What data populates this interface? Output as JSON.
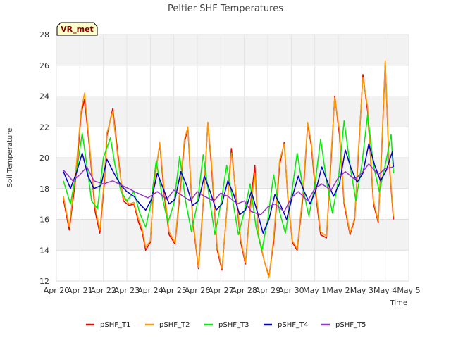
{
  "chart_data": {
    "type": "line",
    "title": "Peltier SHF Temperatures",
    "xlabel": "Time",
    "ylabel": "Soil Temperature",
    "badge": "VR_met",
    "ylim": [
      12,
      28
    ],
    "yticks": [
      12,
      14,
      16,
      18,
      20,
      22,
      24,
      26,
      28
    ],
    "xlim": [
      0,
      15
    ],
    "xticks": [
      {
        "pos": 0,
        "label": "Apr 20"
      },
      {
        "pos": 1,
        "label": "Apr 21"
      },
      {
        "pos": 2,
        "label": "Apr 22"
      },
      {
        "pos": 3,
        "label": "Apr 23"
      },
      {
        "pos": 4,
        "label": "Apr 24"
      },
      {
        "pos": 5,
        "label": "Apr 25"
      },
      {
        "pos": 6,
        "label": "Apr 26"
      },
      {
        "pos": 7,
        "label": "Apr 27"
      },
      {
        "pos": 8,
        "label": "Apr 28"
      },
      {
        "pos": 9,
        "label": "Apr 29"
      },
      {
        "pos": 10,
        "label": "Apr 30"
      },
      {
        "pos": 11,
        "label": "May 1"
      },
      {
        "pos": 12,
        "label": "May 2"
      },
      {
        "pos": 13,
        "label": "May 3"
      },
      {
        "pos": 14,
        "label": "May 4"
      },
      {
        "pos": 15,
        "label": "May 5"
      }
    ],
    "grid": true,
    "legend_position": "bottom",
    "series": [
      {
        "name": "pSHF_T1",
        "color": "#ee0000",
        "x": [
          0.3,
          0.55,
          0.85,
          1.05,
          1.2,
          1.4,
          1.65,
          1.85,
          2.05,
          2.15,
          2.4,
          2.6,
          2.85,
          3.1,
          3.3,
          3.5,
          3.65,
          3.8,
          4.0,
          4.15,
          4.4,
          4.6,
          4.8,
          5.05,
          5.25,
          5.45,
          5.6,
          5.8,
          6.05,
          6.25,
          6.45,
          6.6,
          6.85,
          7.05,
          7.25,
          7.45,
          7.65,
          7.85,
          8.05,
          8.25,
          8.45,
          8.6,
          8.85,
          9.05,
          9.25,
          9.5,
          9.7,
          9.85,
          10.05,
          10.25,
          10.5,
          10.7,
          10.85,
          11.05,
          11.25,
          11.5,
          11.7,
          11.85,
          12.05,
          12.25,
          12.5,
          12.7,
          12.85,
          13.05,
          13.25,
          13.5,
          13.7,
          13.85,
          14.0,
          14.15,
          14.35
        ],
        "y": [
          17.3,
          15.3,
          19.0,
          22.8,
          23.8,
          20.8,
          16.5,
          15.1,
          18.5,
          21.4,
          23.2,
          20.5,
          17.2,
          16.9,
          17.0,
          15.8,
          15.2,
          14.0,
          14.5,
          18.2,
          20.9,
          17.5,
          15.0,
          14.4,
          17.5,
          21.0,
          21.9,
          16.0,
          12.8,
          17.0,
          22.3,
          19.5,
          14.0,
          12.7,
          16.5,
          20.6,
          17.5,
          14.5,
          13.1,
          16.8,
          19.5,
          14.9,
          13.3,
          12.3,
          14.5,
          19.5,
          21.0,
          17.5,
          14.5,
          14.0,
          17.5,
          22.2,
          20.8,
          17.5,
          15.0,
          14.8,
          20.0,
          24.0,
          21.5,
          17.0,
          15.0,
          16.0,
          20.0,
          25.4,
          23.0,
          17.0,
          15.8,
          20.5,
          26.2,
          20.0,
          16.0
        ]
      },
      {
        "name": "pSHF_T2",
        "color": "#ff9900",
        "x": [
          0.3,
          0.55,
          0.85,
          1.05,
          1.2,
          1.4,
          1.65,
          1.85,
          2.05,
          2.15,
          2.4,
          2.6,
          2.85,
          3.1,
          3.3,
          3.5,
          3.65,
          3.8,
          4.0,
          4.15,
          4.4,
          4.6,
          4.8,
          5.05,
          5.25,
          5.45,
          5.6,
          5.8,
          6.05,
          6.25,
          6.45,
          6.6,
          6.85,
          7.05,
          7.25,
          7.45,
          7.65,
          7.85,
          8.05,
          8.25,
          8.45,
          8.6,
          8.85,
          9.05,
          9.25,
          9.5,
          9.7,
          9.85,
          10.05,
          10.25,
          10.5,
          10.7,
          10.85,
          11.05,
          11.25,
          11.5,
          11.7,
          11.85,
          12.05,
          12.25,
          12.5,
          12.7,
          12.85,
          13.05,
          13.25,
          13.5,
          13.7,
          13.85,
          14.0,
          14.15,
          14.35
        ],
        "y": [
          17.5,
          15.5,
          19.5,
          23.0,
          24.2,
          21.0,
          16.8,
          15.3,
          18.8,
          21.6,
          23.0,
          20.2,
          17.4,
          17.0,
          17.1,
          16.0,
          15.4,
          14.2,
          14.6,
          18.0,
          21.0,
          17.8,
          15.2,
          14.5,
          17.8,
          21.2,
          22.0,
          16.2,
          12.9,
          17.2,
          22.3,
          19.8,
          14.2,
          12.8,
          16.5,
          20.3,
          17.7,
          14.7,
          13.2,
          16.5,
          19.0,
          15.0,
          13.3,
          12.2,
          14.8,
          19.8,
          20.9,
          17.6,
          14.6,
          14.1,
          17.8,
          22.3,
          21.0,
          17.8,
          15.2,
          14.9,
          20.3,
          23.9,
          21.8,
          17.2,
          15.1,
          16.1,
          20.3,
          25.2,
          23.3,
          17.2,
          15.9,
          20.8,
          26.3,
          20.2,
          16.2
        ]
      },
      {
        "name": "pSHF_T3",
        "color": "#00ee00",
        "x": [
          0.3,
          0.6,
          0.9,
          1.1,
          1.3,
          1.5,
          1.75,
          2.0,
          2.3,
          2.5,
          2.75,
          3.0,
          3.3,
          3.55,
          3.8,
          4.0,
          4.25,
          4.5,
          4.75,
          5.0,
          5.25,
          5.5,
          5.75,
          6.0,
          6.25,
          6.5,
          6.75,
          7.0,
          7.25,
          7.5,
          7.75,
          8.0,
          8.25,
          8.5,
          8.75,
          9.0,
          9.25,
          9.5,
          9.75,
          10.0,
          10.25,
          10.5,
          10.75,
          11.0,
          11.25,
          11.5,
          11.75,
          12.0,
          12.25,
          12.5,
          12.75,
          13.0,
          13.25,
          13.5,
          13.75,
          14.0,
          14.25,
          14.35
        ],
        "y": [
          18.5,
          17.0,
          19.5,
          21.6,
          19.5,
          17.2,
          16.7,
          20.0,
          21.3,
          19.5,
          17.8,
          17.2,
          17.8,
          16.4,
          15.5,
          16.8,
          19.8,
          17.5,
          15.8,
          17.0,
          20.1,
          17.2,
          15.2,
          17.0,
          20.2,
          17.5,
          15.0,
          17.0,
          19.5,
          17.3,
          15.0,
          16.5,
          18.3,
          15.5,
          14.0,
          16.0,
          18.9,
          16.5,
          15.1,
          17.5,
          20.3,
          18.0,
          16.2,
          18.2,
          21.2,
          18.5,
          16.4,
          18.5,
          22.4,
          19.5,
          17.2,
          19.5,
          22.8,
          19.5,
          17.8,
          19.5,
          21.5,
          19.0
        ]
      },
      {
        "name": "pSHF_T4",
        "color": "#0000cc",
        "x": [
          0.3,
          0.6,
          0.85,
          1.1,
          1.35,
          1.6,
          1.9,
          2.15,
          2.45,
          2.75,
          3.0,
          3.3,
          3.55,
          3.8,
          4.05,
          4.3,
          4.55,
          4.8,
          5.05,
          5.3,
          5.55,
          5.8,
          6.05,
          6.3,
          6.55,
          6.8,
          7.05,
          7.3,
          7.55,
          7.8,
          8.05,
          8.3,
          8.55,
          8.8,
          9.05,
          9.3,
          9.55,
          9.8,
          10.05,
          10.3,
          10.55,
          10.8,
          11.05,
          11.3,
          11.55,
          11.8,
          12.05,
          12.3,
          12.55,
          12.8,
          13.05,
          13.3,
          13.55,
          13.8,
          14.05,
          14.3,
          14.35
        ],
        "y": [
          19.1,
          18.0,
          19.0,
          20.3,
          18.8,
          18.0,
          18.2,
          19.9,
          19.0,
          18.2,
          17.8,
          17.5,
          17.0,
          16.6,
          17.3,
          19.0,
          18.0,
          17.0,
          17.3,
          19.1,
          18.2,
          16.9,
          17.2,
          18.8,
          17.8,
          16.6,
          17.0,
          18.5,
          17.6,
          16.3,
          16.6,
          17.8,
          16.5,
          15.1,
          16.0,
          17.6,
          16.9,
          16.0,
          17.5,
          18.8,
          17.8,
          17.0,
          17.9,
          19.4,
          18.4,
          17.5,
          18.3,
          20.5,
          19.3,
          18.4,
          19.0,
          20.9,
          19.5,
          18.5,
          19.2,
          20.4,
          19.4
        ]
      },
      {
        "name": "pSHF_T5",
        "color": "#9933cc",
        "x": [
          0.3,
          0.7,
          1.0,
          1.3,
          1.6,
          2.0,
          2.4,
          2.8,
          3.2,
          3.6,
          3.9,
          4.3,
          4.7,
          5.0,
          5.3,
          5.7,
          6.0,
          6.3,
          6.7,
          7.0,
          7.3,
          7.7,
          8.0,
          8.3,
          8.7,
          9.0,
          9.3,
          9.7,
          10.0,
          10.3,
          10.7,
          11.0,
          11.3,
          11.7,
          12.0,
          12.3,
          12.7,
          13.0,
          13.3,
          13.7,
          14.0,
          14.35
        ],
        "y": [
          19.2,
          18.5,
          18.9,
          19.4,
          18.5,
          18.3,
          18.5,
          18.2,
          17.9,
          17.6,
          17.4,
          17.8,
          17.3,
          17.9,
          17.6,
          17.2,
          17.8,
          17.5,
          17.2,
          17.7,
          17.5,
          17.0,
          17.2,
          16.5,
          16.3,
          16.8,
          17.0,
          16.5,
          17.4,
          17.8,
          17.2,
          18.0,
          18.3,
          17.9,
          18.7,
          19.1,
          18.6,
          19.0,
          19.6,
          18.9,
          19.3,
          19.4
        ]
      }
    ]
  }
}
